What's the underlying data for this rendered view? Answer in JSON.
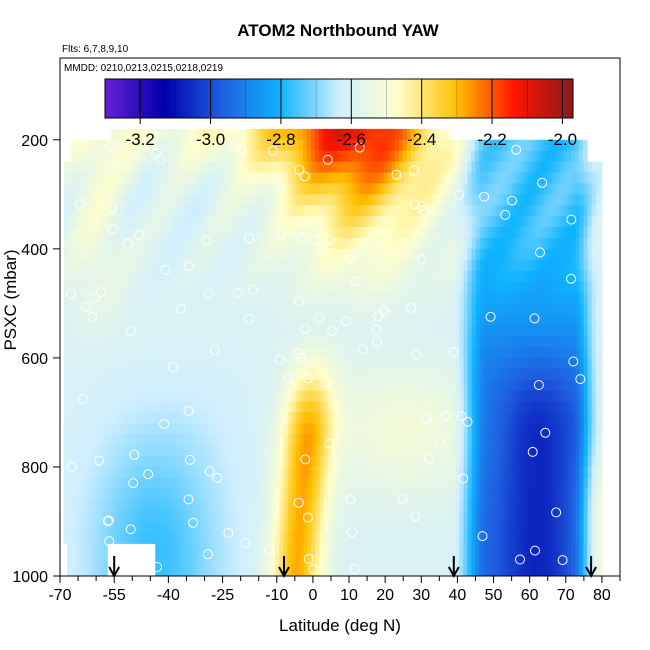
{
  "chart_data": {
    "type": "heatmap",
    "title": "ATOM2 Northbound YAW",
    "flights_note": "Flts: 6,7,8,9,10",
    "dates_note": "MMDD: 0210,0213,0215,0218,0219",
    "xlabel": "Latitude (deg N)",
    "ylabel": "PSXC (mbar)",
    "xlim": [
      -70,
      85
    ],
    "ylim": [
      1000,
      50
    ],
    "x_ticks": [
      -70,
      -55,
      -40,
      -25,
      -10,
      0,
      10,
      20,
      30,
      40,
      50,
      60,
      70,
      80
    ],
    "y_ticks": [
      200,
      400,
      600,
      800,
      1000
    ],
    "colorbar": {
      "range": [
        -3.3,
        -1.97
      ],
      "ticks": [
        -3.2,
        -3.0,
        -2.8,
        -2.6,
        -2.4,
        -2.2,
        -2.0
      ],
      "tick_labels": [
        "-3.2",
        "-3.0",
        "-2.8",
        "-2.6",
        "-2.4",
        "-2.2",
        "-2.0"
      ],
      "colors": [
        "#6a1fd8",
        "#0000aa",
        "#1f5fe0",
        "#10b4ff",
        "#cfeeff",
        "#ffffcc",
        "#ffc000",
        "#ff1500",
        "#8a1a1a"
      ]
    },
    "profile_markers_lat": [
      -55,
      -8,
      39,
      77
    ],
    "grid": false,
    "legend": "none"
  }
}
